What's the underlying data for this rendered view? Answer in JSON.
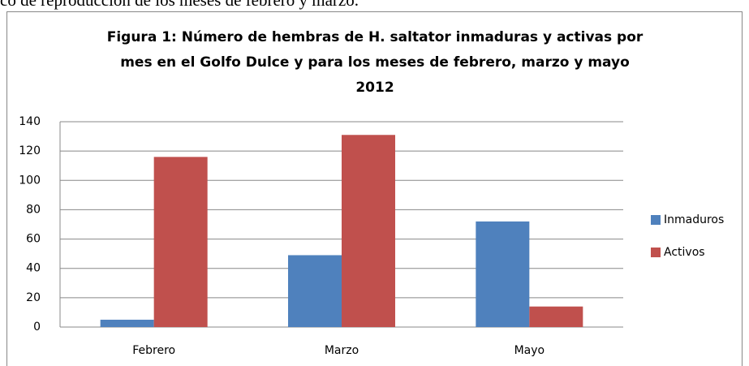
{
  "caption": "co de reproducción de los meses de febrero y marzo.",
  "chart_data": {
    "type": "bar",
    "title": [
      "Figura 1: Número de hembras de H. saltator inmaduras y activas por",
      "mes en el Golfo Dulce y para los meses de febrero, marzo y mayo",
      "2012"
    ],
    "categories": [
      "Febrero",
      "Marzo",
      "Mayo"
    ],
    "series": [
      {
        "name": "Inmaduros",
        "color": "#4f81bd",
        "values": [
          5,
          49,
          72
        ]
      },
      {
        "name": "Activos",
        "color": "#c0504d",
        "values": [
          116,
          131,
          14
        ]
      }
    ],
    "ylim": [
      0,
      140
    ],
    "yticks": [
      0,
      20,
      40,
      60,
      80,
      100,
      120,
      140
    ],
    "grid": true,
    "legend": "right"
  }
}
